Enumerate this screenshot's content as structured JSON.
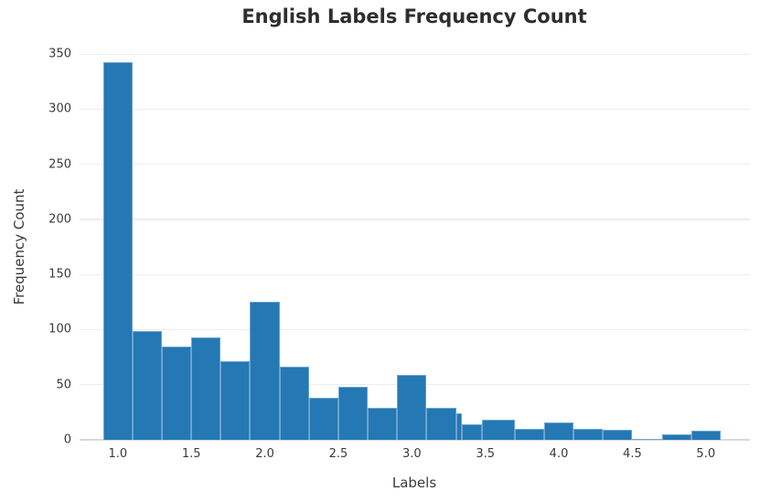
{
  "chart_data": {
    "type": "bar",
    "subtype": "histogram",
    "title": "English Labels Frequency Count",
    "xlabel": "Labels",
    "ylabel": "Frequency Count",
    "x_ticks": [
      "1.0",
      "1.5",
      "2.0",
      "2.5",
      "3.0",
      "3.5",
      "4.0",
      "4.5",
      "5.0"
    ],
    "y_ticks": [
      0,
      50,
      100,
      150,
      200,
      250,
      300,
      350
    ],
    "xlim": [
      0.74,
      5.3
    ],
    "ylim": [
      0,
      356
    ],
    "grid": "horizontal",
    "legend": "none",
    "bar_color": "#2478b4",
    "gridline_color": "#ececec",
    "baseline_color": "#d8d8d8",
    "text_color": "#3a3a3a",
    "title_color": "#2e2e2e",
    "bars": [
      {
        "x0": 0.9,
        "x1": 1.1,
        "count": 343
      },
      {
        "x0": 1.1,
        "x1": 1.3,
        "count": 99
      },
      {
        "x0": 1.3,
        "x1": 1.5,
        "count": 85
      },
      {
        "x0": 1.5,
        "x1": 1.7,
        "count": 93
      },
      {
        "x0": 1.7,
        "x1": 1.9,
        "count": 71
      },
      {
        "x0": 1.9,
        "x1": 2.1,
        "count": 125
      },
      {
        "x0": 2.1,
        "x1": 2.3,
        "count": 66
      },
      {
        "x0": 2.3,
        "x1": 2.5,
        "count": 38
      },
      {
        "x0": 2.5,
        "x1": 2.7,
        "count": 48
      },
      {
        "x0": 2.7,
        "x1": 2.9,
        "count": 29
      },
      {
        "x0": 2.9,
        "x1": 3.1,
        "count": 59
      },
      {
        "x0": 3.1,
        "x1": 3.3,
        "count": 29
      },
      {
        "x0": 3.3,
        "x1": 3.34,
        "count": 24
      },
      {
        "x0": 3.34,
        "x1": 3.48,
        "count": 14
      },
      {
        "x0": 3.48,
        "x1": 3.7,
        "count": 18
      },
      {
        "x0": 3.7,
        "x1": 3.9,
        "count": 10
      },
      {
        "x0": 3.9,
        "x1": 4.1,
        "count": 16
      },
      {
        "x0": 4.1,
        "x1": 4.3,
        "count": 10
      },
      {
        "x0": 4.3,
        "x1": 4.5,
        "count": 9
      },
      {
        "x0": 4.5,
        "x1": 4.7,
        "count": 1
      },
      {
        "x0": 4.7,
        "x1": 4.9,
        "count": 5
      },
      {
        "x0": 4.9,
        "x1": 5.1,
        "count": 8
      }
    ]
  }
}
